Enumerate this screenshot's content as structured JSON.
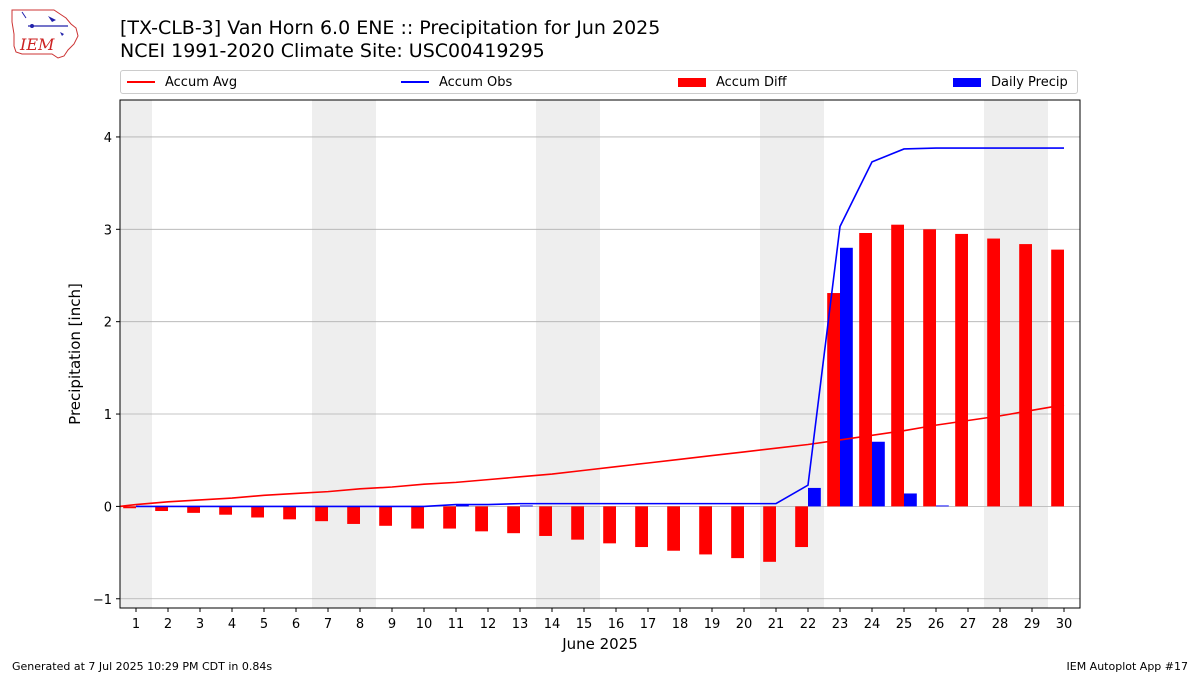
{
  "header": {
    "title_line1": "[TX-CLB-3] Van Horn 6.0 ENE :: Precipitation for Jun 2025",
    "title_line2": "NCEI 1991-2020 Climate Site: USC00419295",
    "logo_text": "IEM"
  },
  "footer": {
    "left": "Generated at 7 Jul 2025 10:29 PM CDT in 0.84s",
    "right": "IEM Autoplot App #17"
  },
  "colors": {
    "accum_avg": "#ff0000",
    "accum_obs": "#0000ff",
    "accum_diff": "#ff0000",
    "daily_precip": "#0000ff",
    "weekend_shade": "#eeeeee",
    "grid": "#b0b0b0"
  },
  "chart_data": {
    "type": "bar",
    "xlabel": "June 2025",
    "ylabel": "Precipitation [inch]",
    "xlim": [
      0.5,
      30.5
    ],
    "ylim": [
      -1.1,
      4.4
    ],
    "yticks": [
      -1,
      0,
      1,
      2,
      3,
      4
    ],
    "grid": "horizontal",
    "legend": "top",
    "weekend_shading": [
      [
        0.5,
        1.5
      ],
      [
        6.5,
        8.5
      ],
      [
        13.5,
        15.5
      ],
      [
        20.5,
        22.5
      ],
      [
        27.5,
        29.5
      ]
    ],
    "x": [
      1,
      2,
      3,
      4,
      5,
      6,
      7,
      8,
      9,
      10,
      11,
      12,
      13,
      14,
      15,
      16,
      17,
      18,
      19,
      20,
      21,
      22,
      23,
      24,
      25,
      26,
      27,
      28,
      29,
      30
    ],
    "series": [
      {
        "name": "Accum Avg",
        "kind": "line",
        "values": [
          0.02,
          0.05,
          0.07,
          0.09,
          0.12,
          0.14,
          0.16,
          0.19,
          0.21,
          0.24,
          0.26,
          0.29,
          0.32,
          0.35,
          0.39,
          0.43,
          0.47,
          0.51,
          0.55,
          0.59,
          0.63,
          0.67,
          0.72,
          0.77,
          0.82,
          0.88,
          0.93,
          0.98,
          1.04,
          1.1
        ]
      },
      {
        "name": "Accum Obs",
        "kind": "line",
        "values": [
          0,
          0,
          0,
          0,
          0,
          0,
          0,
          0,
          0,
          0,
          0.02,
          0.02,
          0.03,
          0.03,
          0.03,
          0.03,
          0.03,
          0.03,
          0.03,
          0.03,
          0.03,
          0.23,
          3.03,
          3.73,
          3.87,
          3.88,
          3.88,
          3.88,
          3.88,
          3.88
        ]
      },
      {
        "name": "Accum Diff",
        "kind": "bar",
        "values": [
          -0.02,
          -0.05,
          -0.07,
          -0.09,
          -0.12,
          -0.14,
          -0.16,
          -0.19,
          -0.21,
          -0.24,
          -0.24,
          -0.27,
          -0.29,
          -0.32,
          -0.36,
          -0.4,
          -0.44,
          -0.48,
          -0.52,
          -0.56,
          -0.6,
          -0.44,
          2.31,
          2.96,
          3.05,
          3.0,
          2.95,
          2.9,
          2.84,
          2.78
        ]
      },
      {
        "name": "Daily Precip",
        "kind": "bar",
        "values": [
          0,
          0,
          0,
          0,
          0,
          0,
          0,
          0,
          0,
          0,
          0.02,
          0,
          0.01,
          0,
          0,
          0,
          0,
          0,
          0,
          0,
          0,
          0.2,
          2.8,
          0.7,
          0.14,
          0.01,
          0,
          0,
          0,
          0
        ]
      }
    ]
  }
}
